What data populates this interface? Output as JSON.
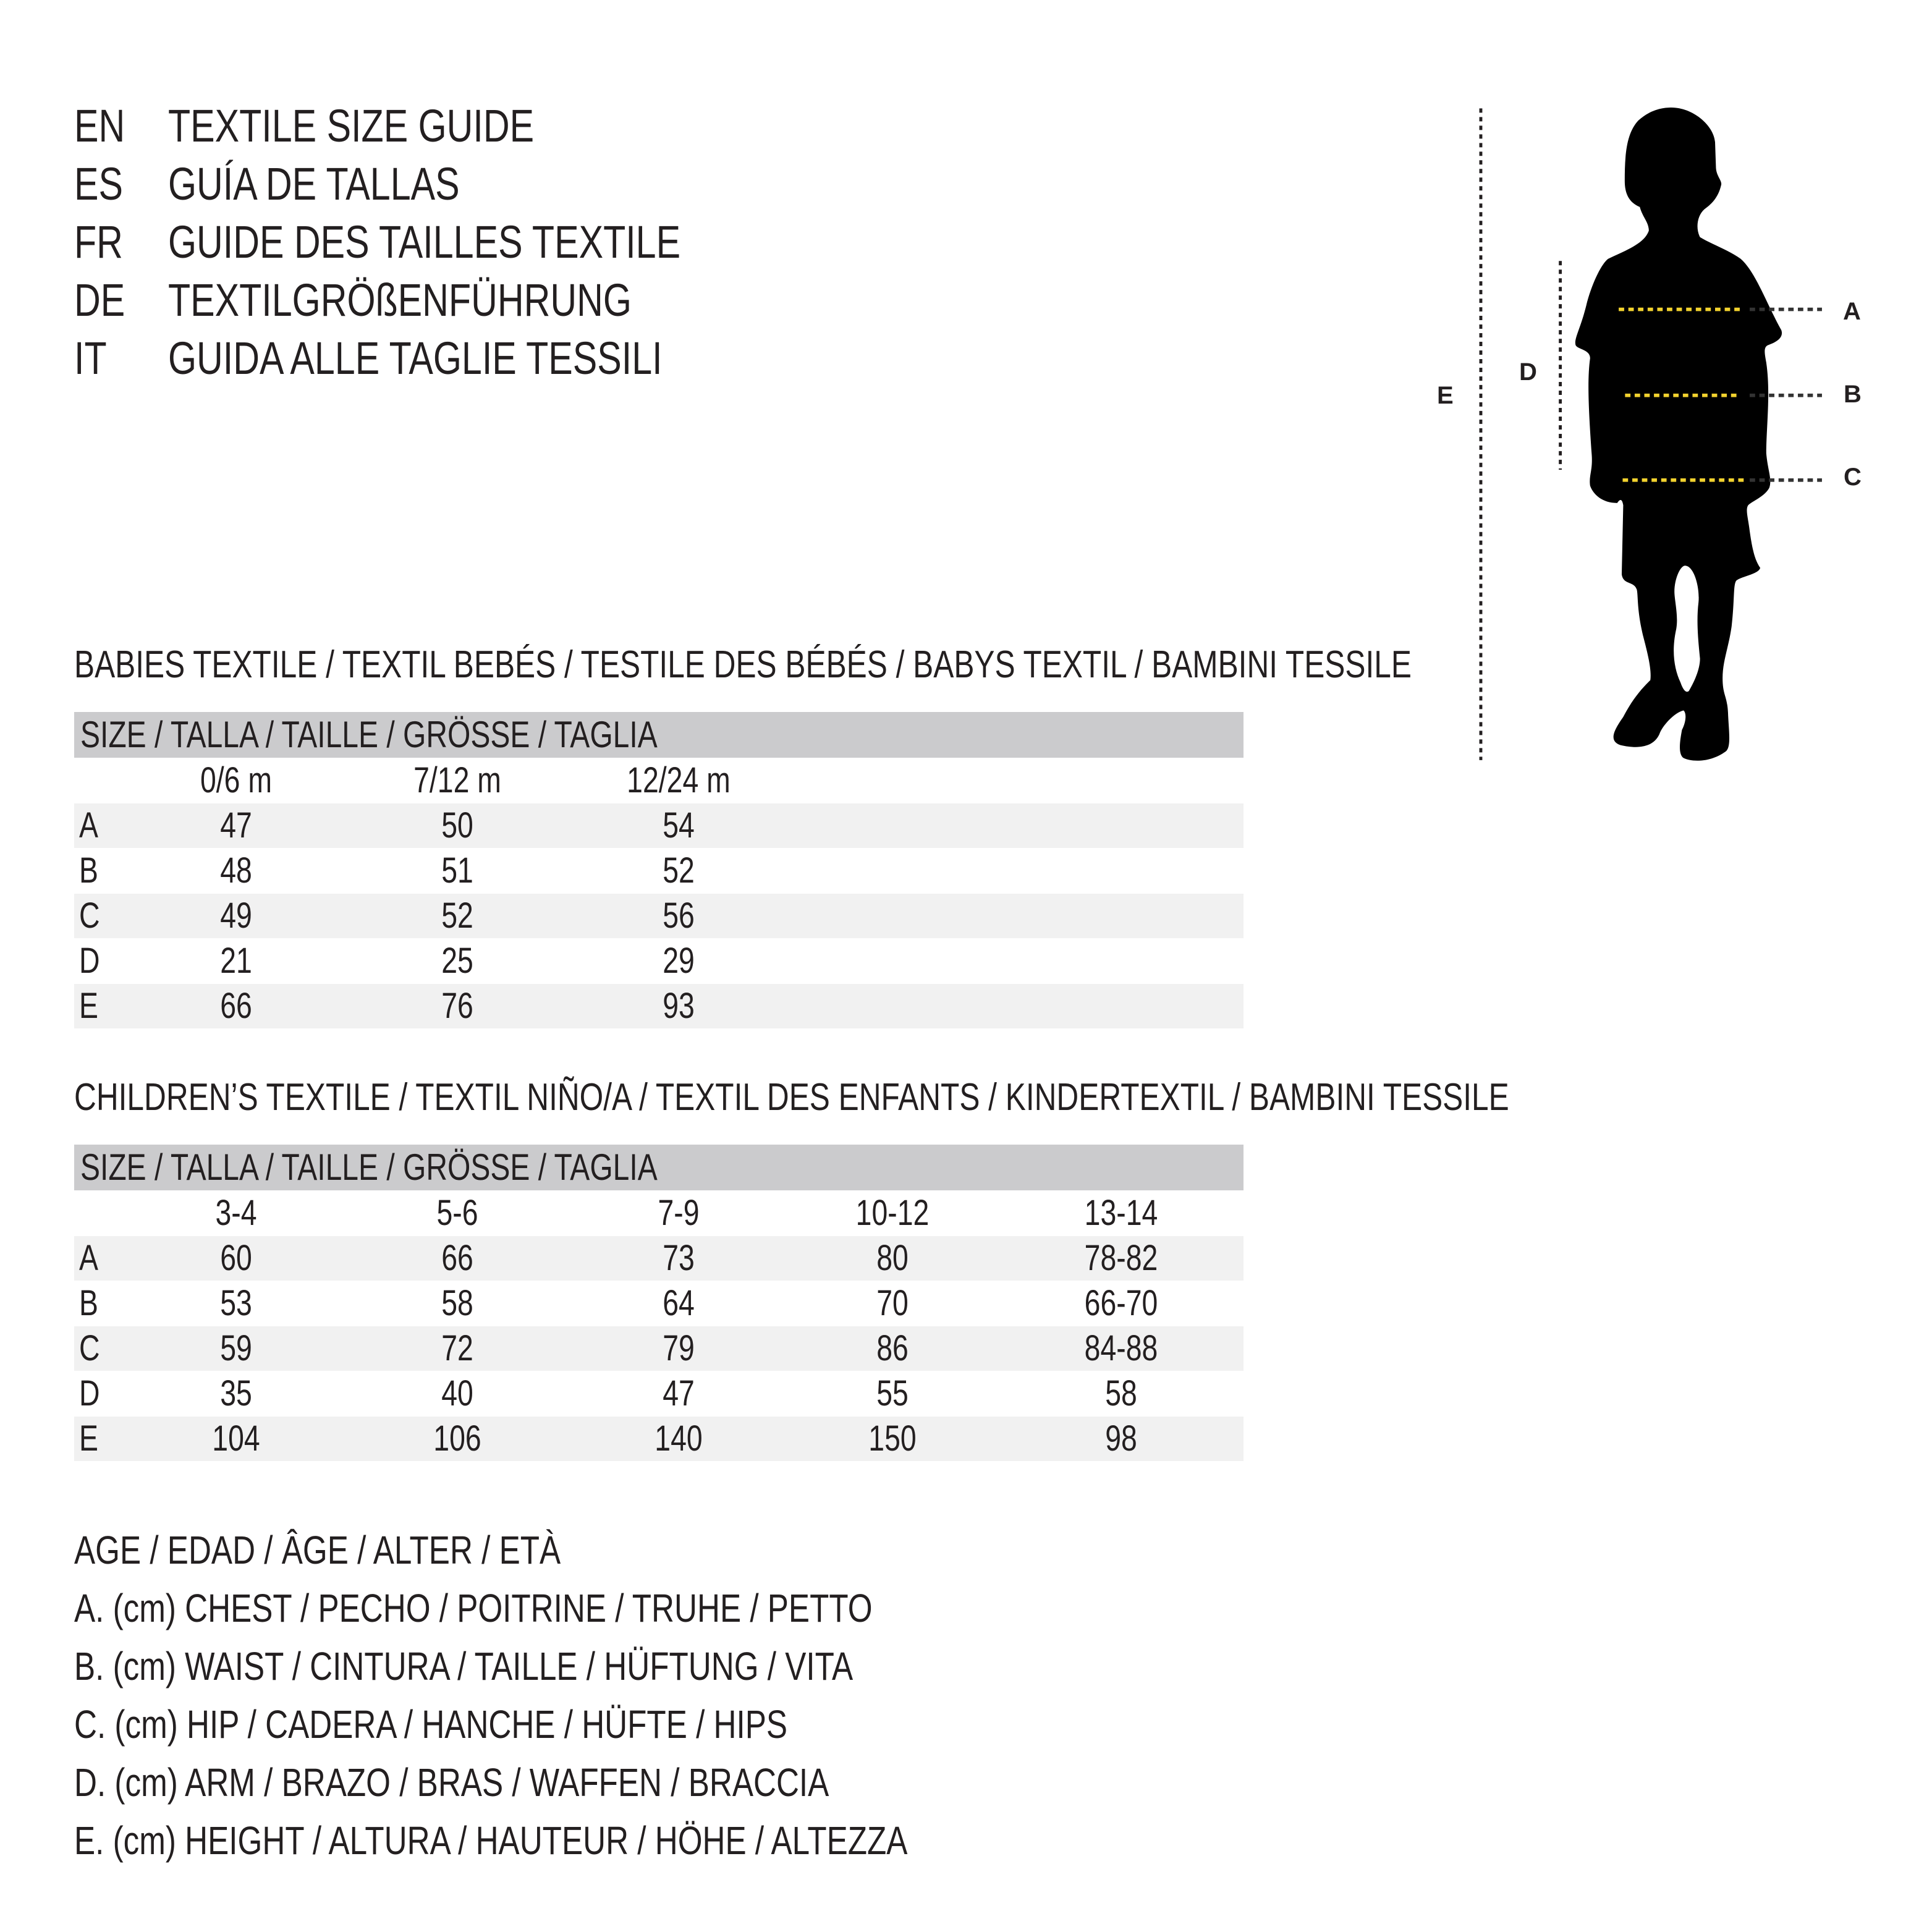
{
  "titles": [
    {
      "code": "EN",
      "text": "TEXTILE SIZE GUIDE"
    },
    {
      "code": "ES",
      "text": "GUÍA DE TALLAS"
    },
    {
      "code": "FR",
      "text": "GUIDE DES TAILLES TEXTILE"
    },
    {
      "code": "DE",
      "text": "TEXTILGRÖßENFÜHRUNG"
    },
    {
      "code": "IT",
      "text": "GUIDA ALLE TAGLIE TESSILI"
    }
  ],
  "babies": {
    "heading": "BABIES TEXTILE / TEXTIL BEBÉS / TESTILE DES BÉBÉS / BABYS TEXTIL / BAMBINI TESSILE",
    "size_header": "SIZE / TALLA / TAILLE / GRÖSSE / TAGLIA",
    "columns": [
      "0/6 m",
      "7/12 m",
      "12/24 m"
    ],
    "rows": [
      {
        "label": "A",
        "values": [
          "47",
          "50",
          "54"
        ]
      },
      {
        "label": "B",
        "values": [
          "48",
          "51",
          "52"
        ]
      },
      {
        "label": "C",
        "values": [
          "49",
          "52",
          "56"
        ]
      },
      {
        "label": "D",
        "values": [
          "21",
          "25",
          "29"
        ]
      },
      {
        "label": "E",
        "values": [
          "66",
          "76",
          "93"
        ]
      }
    ]
  },
  "children": {
    "heading": "CHILDREN’S TEXTILE / TEXTIL NIÑO/A / TEXTIL DES ENFANTS / KINDERTEXTIL / BAMBINI TESSILE",
    "size_header": "SIZE / TALLA / TAILLE / GRÖSSE / TAGLIA",
    "columns": [
      "3-4",
      "5-6",
      "7-9",
      "10-12",
      "13-14"
    ],
    "rows": [
      {
        "label": "A",
        "values": [
          "60",
          "66",
          "73",
          "80",
          "78-82"
        ]
      },
      {
        "label": "B",
        "values": [
          "53",
          "58",
          "64",
          "70",
          "66-70"
        ]
      },
      {
        "label": "C",
        "values": [
          "59",
          "72",
          "79",
          "86",
          "84-88"
        ]
      },
      {
        "label": "D",
        "values": [
          "35",
          "40",
          "47",
          "55",
          "58"
        ]
      },
      {
        "label": "E",
        "values": [
          "104",
          "106",
          "140",
          "150",
          "98"
        ]
      }
    ]
  },
  "legend": [
    "AGE / EDAD / ÂGE / ALTER / ETÀ",
    "A. (cm) CHEST / PECHO / POITRINE / TRUHE / PETTO",
    "B. (cm) WAIST / CINTURA / TAILLE / HÜFTUNG / VITA",
    "C. (cm) HIP / CADERA / HANCHE / HÜFTE / HIPS",
    "D. (cm) ARM / BRAZO / BRAS / WAFFEN / BRACCIA",
    "E. (cm) HEIGHT / ALTURA / HAUTEUR / HÖHE / ALTEZZA"
  ],
  "figure": {
    "icon": "child-silhouette-icon",
    "labels": {
      "A": "A",
      "B": "B",
      "C": "C",
      "D": "D",
      "E": "E"
    },
    "colors": {
      "measure_line": "#f2d22e",
      "silhouette": "#000000",
      "header_bar": "#cbcbcd",
      "shaded_row": "#f1f1f1"
    }
  }
}
